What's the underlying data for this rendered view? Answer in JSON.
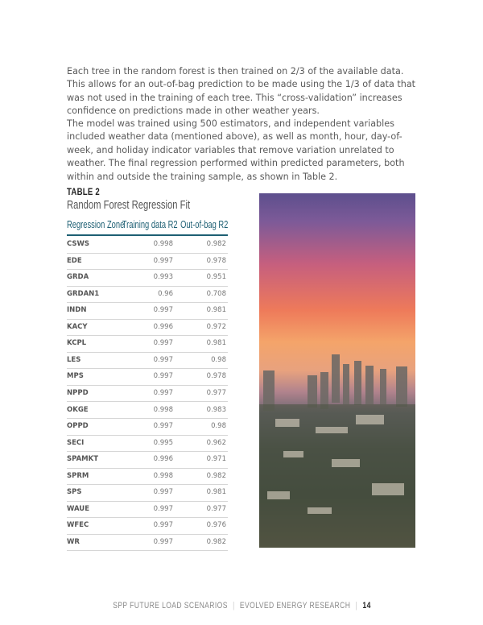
{
  "paragraphs": [
    "Each tree in the random forest is then trained on 2/3 of the available data. This allows for an out-of-bag prediction to be made using the 1/3 of data that was not used in the training of each tree. This “cross-validation” increases confidence on predictions made in other weather years.",
    "The model was trained using 500 estimators, and independent variables included weather data (mentioned above), as well as month, hour, day-of-week, and holiday indicator variables that remove variation unrelated to weather. The final regression performed within predicted parameters, both within and outside the training sample, as shown in Table 2."
  ],
  "table": {
    "label": "TABLE 2",
    "title": "Random Forest Regression Fit",
    "headers": [
      "Regression Zone",
      "Training data R2",
      "Out-of-bag R2"
    ],
    "rows": [
      [
        "CSWS",
        "0.998",
        "0.982"
      ],
      [
        "EDE",
        "0.997",
        "0.978"
      ],
      [
        "GRDA",
        "0.993",
        "0.951"
      ],
      [
        "GRDAN1",
        "0.96",
        "0.708"
      ],
      [
        "INDN",
        "0.997",
        "0.981"
      ],
      [
        "KACY",
        "0.996",
        "0.972"
      ],
      [
        "KCPL",
        "0.997",
        "0.981"
      ],
      [
        "LES",
        "0.997",
        "0.98"
      ],
      [
        "MPS",
        "0.997",
        "0.978"
      ],
      [
        "NPPD",
        "0.997",
        "0.977"
      ],
      [
        "OKGE",
        "0.998",
        "0.983"
      ],
      [
        "OPPD",
        "0.997",
        "0.98"
      ],
      [
        "SECI",
        "0.995",
        "0.962"
      ],
      [
        "SPAMKT",
        "0.996",
        "0.971"
      ],
      [
        "SPRM",
        "0.998",
        "0.982"
      ],
      [
        "SPS",
        "0.997",
        "0.981"
      ],
      [
        "WAUE",
        "0.997",
        "0.977"
      ],
      [
        "WFEC",
        "0.997",
        "0.976"
      ],
      [
        "WR",
        "0.997",
        "0.982"
      ]
    ]
  },
  "footer": {
    "left": "SPP FUTURE LOAD SCENARIOS",
    "right": "EVOLVED ENERGY RESEARCH",
    "page": "14"
  },
  "colors": {
    "accent": "#1d5f73"
  }
}
